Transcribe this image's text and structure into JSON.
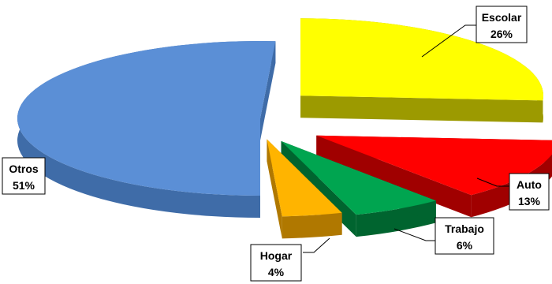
{
  "chart_data": {
    "type": "pie",
    "variant": "exploded-3d",
    "categories": [
      "Otros",
      "Escolar",
      "Auto",
      "Trabajo",
      "Hogar"
    ],
    "values": [
      51,
      26,
      13,
      6,
      4
    ],
    "labels": [
      {
        "name": "Otros",
        "value": "51%"
      },
      {
        "name": "Escolar",
        "value": "26%"
      },
      {
        "name": "Auto",
        "value": "13%"
      },
      {
        "name": "Trabajo",
        "value": "6%"
      },
      {
        "name": "Hogar",
        "value": "4%"
      }
    ],
    "colors": {
      "Otros": {
        "top": "#5B8FD6",
        "side": "#3F6CA8"
      },
      "Escolar": {
        "top": "#FFFF00",
        "side": "#9C9A00"
      },
      "Auto": {
        "top": "#FF0000",
        "side": "#A00000"
      },
      "Trabajo": {
        "top": "#00A550",
        "side": "#00642F"
      },
      "Hogar": {
        "top": "#FFB400",
        "side": "#B07800"
      }
    },
    "title": "",
    "legend": "none"
  }
}
